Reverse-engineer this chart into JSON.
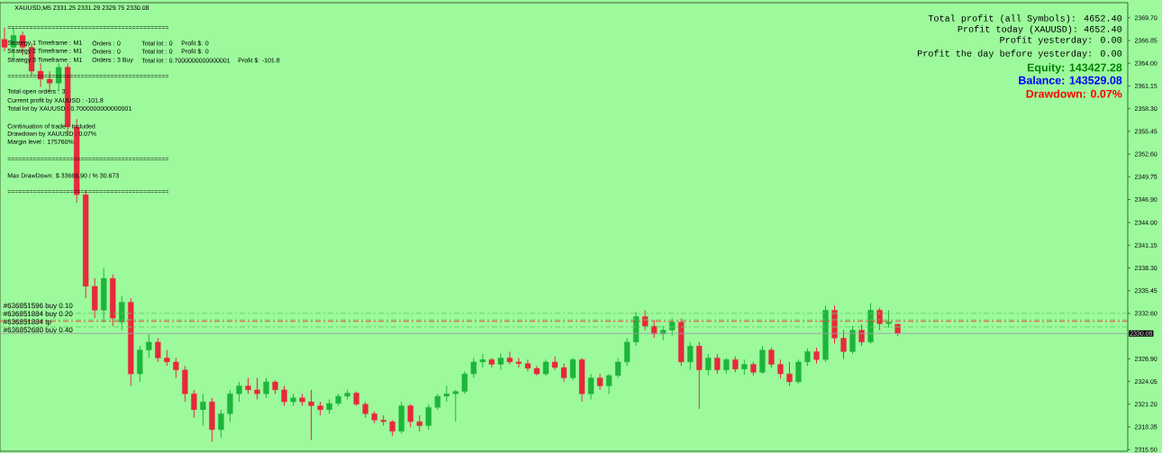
{
  "chart_data": {
    "type": "candlestick",
    "title": "XAUUSD,M5  2331.25 2331.29 2329.75 2330.08",
    "categories": [
      null,
      null,
      null,
      null,
      null,
      null,
      null,
      null,
      null,
      null,
      null,
      null,
      null,
      null,
      null,
      null,
      null,
      null,
      null,
      null,
      null,
      null,
      null,
      null,
      null,
      null,
      null,
      null,
      null,
      null,
      null,
      null,
      null,
      null,
      null,
      null,
      null,
      null,
      null,
      null,
      null,
      null,
      null,
      null,
      null,
      null,
      null,
      null,
      null,
      null,
      null,
      null,
      null,
      null,
      null,
      null,
      null,
      null,
      null,
      null,
      null,
      null,
      null,
      null,
      null,
      null,
      null,
      null,
      null,
      null,
      null,
      null,
      null,
      null,
      null,
      null,
      null,
      null,
      null,
      null,
      null,
      null,
      null,
      null,
      null,
      null,
      null,
      null,
      null,
      null,
      null,
      null,
      null,
      null,
      null,
      null,
      null,
      null,
      null,
      null,
      null,
      null,
      null,
      null,
      null,
      null,
      null,
      null,
      null,
      null,
      null,
      null,
      null,
      null,
      null,
      null,
      null,
      null,
      null,
      null,
      null,
      null,
      null,
      null,
      null
    ],
    "ohlc": [
      [
        2367.0,
        2368.5,
        2365.5,
        2366.0
      ],
      [
        2366.0,
        2368.4,
        2364.5,
        2367.5
      ],
      [
        2367.5,
        2368.0,
        2365.0,
        2366.0
      ],
      [
        2366.0,
        2366.5,
        2362.5,
        2363.0
      ],
      [
        2363.0,
        2364.0,
        2361.0,
        2362.0
      ],
      [
        2362.0,
        2363.0,
        2360.5,
        2361.5
      ],
      [
        2361.5,
        2364.0,
        2360.5,
        2363.5
      ],
      [
        2363.5,
        2364.0,
        2355.0,
        2356.0
      ],
      [
        2356.0,
        2357.0,
        2346.5,
        2347.5
      ],
      [
        2347.5,
        2348.0,
        2334.5,
        2336.0
      ],
      [
        2336.0,
        2337.0,
        2332.0,
        2333.0
      ],
      [
        2333.0,
        2338.3,
        2331.5,
        2337.0
      ],
      [
        2337.0,
        2337.5,
        2331.0,
        2332.0
      ],
      [
        2331.5,
        2334.8,
        2330.5,
        2334.0
      ],
      [
        2334.0,
        2334.5,
        2323.5,
        2325.0
      ],
      [
        2325.0,
        2328.5,
        2324.0,
        2328.0
      ],
      [
        2328.0,
        2330.0,
        2327.0,
        2329.0
      ],
      [
        2329.0,
        2329.5,
        2326.5,
        2327.0
      ],
      [
        2327.0,
        2328.0,
        2326.0,
        2326.5
      ],
      [
        2326.5,
        2327.0,
        2324.5,
        2325.5
      ],
      [
        2325.5,
        2326.0,
        2321.5,
        2322.5
      ],
      [
        2322.5,
        2323.0,
        2319.5,
        2320.5
      ],
      [
        2320.5,
        2322.5,
        2318.5,
        2321.5
      ],
      [
        2321.5,
        2322.0,
        2316.5,
        2318.0
      ],
      [
        2318.0,
        2320.5,
        2317.0,
        2320.0
      ],
      [
        2320.0,
        2323.0,
        2319.0,
        2322.5
      ],
      [
        2322.5,
        2324.0,
        2321.5,
        2323.5
      ],
      [
        2323.5,
        2324.5,
        2322.5,
        2323.0
      ],
      [
        2323.0,
        2324.5,
        2321.8,
        2322.5
      ],
      [
        2322.5,
        2324.5,
        2322.0,
        2324.0
      ],
      [
        2324.0,
        2324.2,
        2322.5,
        2323.0
      ],
      [
        2323.0,
        2323.5,
        2321.0,
        2321.5
      ],
      [
        2321.5,
        2322.5,
        2321.0,
        2322.0
      ],
      [
        2322.0,
        2322.5,
        2321.0,
        2321.5
      ],
      [
        2321.5,
        2323.0,
        2316.7,
        2321.0
      ],
      [
        2321.0,
        2321.5,
        2319.8,
        2320.5
      ],
      [
        2320.5,
        2321.8,
        2320.0,
        2321.3
      ],
      [
        2321.3,
        2322.5,
        2321.0,
        2322.2
      ],
      [
        2322.2,
        2323.0,
        2321.8,
        2322.6
      ],
      [
        2322.6,
        2322.8,
        2321.0,
        2321.2
      ],
      [
        2321.2,
        2321.5,
        2319.5,
        2320.0
      ],
      [
        2320.0,
        2320.3,
        2318.8,
        2319.2
      ],
      [
        2319.2,
        2319.8,
        2318.5,
        2319.0
      ],
      [
        2319.0,
        2319.2,
        2317.2,
        2317.8
      ],
      [
        2317.8,
        2321.5,
        2317.5,
        2321.0
      ],
      [
        2321.0,
        2321.2,
        2318.3,
        2319.0
      ],
      [
        2319.0,
        2319.8,
        2317.8,
        2318.5
      ],
      [
        2318.5,
        2321.2,
        2318.0,
        2320.8
      ],
      [
        2320.8,
        2322.5,
        2320.5,
        2322.2
      ],
      [
        2322.2,
        2323.5,
        2321.5,
        2322.5
      ],
      [
        2322.5,
        2323.0,
        2319.0,
        2322.8
      ],
      [
        2322.8,
        2325.3,
        2322.5,
        2325.0
      ],
      [
        2325.0,
        2327.0,
        2324.5,
        2326.5
      ],
      [
        2326.5,
        2327.5,
        2325.8,
        2326.8
      ],
      [
        2326.8,
        2327.0,
        2325.8,
        2326.2
      ],
      [
        2326.2,
        2327.6,
        2325.5,
        2327.0
      ],
      [
        2327.0,
        2327.8,
        2326.2,
        2326.5
      ],
      [
        2326.5,
        2327.0,
        2325.8,
        2326.3
      ],
      [
        2326.3,
        2326.8,
        2325.3,
        2325.7
      ],
      [
        2325.7,
        2326.0,
        2324.8,
        2325.0
      ],
      [
        2325.0,
        2326.8,
        2324.8,
        2326.5
      ],
      [
        2326.5,
        2327.2,
        2325.5,
        2325.8
      ],
      [
        2325.8,
        2326.3,
        2324.0,
        2324.5
      ],
      [
        2324.5,
        2327.0,
        2324.2,
        2326.8
      ],
      [
        2326.8,
        2327.0,
        2321.5,
        2322.5
      ],
      [
        2322.5,
        2325.0,
        2321.8,
        2324.5
      ],
      [
        2324.5,
        2325.0,
        2323.0,
        2323.5
      ],
      [
        2323.5,
        2325.0,
        2322.5,
        2324.8
      ],
      [
        2324.8,
        2327.0,
        2324.5,
        2326.5
      ],
      [
        2326.5,
        2329.5,
        2326.0,
        2329.0
      ],
      [
        2329.0,
        2332.8,
        2328.5,
        2332.2
      ],
      [
        2332.2,
        2333.0,
        2330.5,
        2331.0
      ],
      [
        2331.0,
        2331.8,
        2329.5,
        2330.0
      ],
      [
        2330.0,
        2331.0,
        2329.2,
        2330.5
      ],
      [
        2330.5,
        2332.0,
        2329.8,
        2331.5
      ],
      [
        2331.5,
        2332.0,
        2326.0,
        2326.5
      ],
      [
        2326.5,
        2329.0,
        2325.5,
        2328.5
      ],
      [
        2328.5,
        2329.0,
        2320.6,
        2325.5
      ],
      [
        2325.5,
        2327.5,
        2324.8,
        2327.0
      ],
      [
        2327.0,
        2327.5,
        2325.0,
        2325.5
      ],
      [
        2325.5,
        2327.0,
        2325.0,
        2326.8
      ],
      [
        2326.8,
        2327.2,
        2325.2,
        2325.6
      ],
      [
        2325.6,
        2326.8,
        2324.9,
        2326.2
      ],
      [
        2326.2,
        2326.5,
        2324.8,
        2325.2
      ],
      [
        2325.2,
        2328.5,
        2325.0,
        2328.0
      ],
      [
        2328.0,
        2328.3,
        2325.8,
        2326.2
      ],
      [
        2326.2,
        2326.8,
        2324.4,
        2325.0
      ],
      [
        2325.0,
        2326.5,
        2323.5,
        2324.0
      ],
      [
        2324.0,
        2326.8,
        2323.8,
        2326.5
      ],
      [
        2326.5,
        2328.2,
        2326.0,
        2327.8
      ],
      [
        2327.8,
        2328.3,
        2326.3,
        2326.8
      ],
      [
        2326.8,
        2333.6,
        2326.5,
        2333.0
      ],
      [
        2333.0,
        2333.6,
        2328.8,
        2329.5
      ],
      [
        2329.5,
        2330.5,
        2326.9,
        2327.8
      ],
      [
        2327.8,
        2331.0,
        2327.5,
        2330.5
      ],
      [
        2330.5,
        2331.2,
        2328.5,
        2329.0
      ],
      [
        2329.0,
        2333.9,
        2328.8,
        2333.0
      ],
      [
        2333.0,
        2333.3,
        2330.5,
        2331.3
      ],
      [
        2331.3,
        2333.0,
        2330.8,
        2331.5
      ],
      [
        2331.25,
        2331.29,
        2329.75,
        2330.08
      ],
      null,
      null,
      null,
      null,
      null,
      null,
      null,
      null,
      null,
      null,
      null,
      null,
      null,
      null,
      null,
      null,
      null,
      null,
      null,
      null,
      null,
      null,
      null,
      null,
      null
    ],
    "colors": [
      "#e8283c",
      "#1db53b",
      "#e8283c",
      "#e8283c",
      "#e8283c",
      "#e8283c",
      "#1db53b",
      "#e8283c",
      "#e8283c",
      "#e8283c",
      "#e8283c",
      "#1db53b",
      "#e8283c",
      "#1db53b",
      "#e8283c",
      "#1db53b",
      "#1db53b",
      "#e8283c",
      "#e8283c",
      "#e8283c",
      "#e8283c",
      "#e8283c",
      "#1db53b",
      "#e8283c",
      "#1db53b",
      "#1db53b",
      "#1db53b",
      "#e8283c",
      "#e8283c",
      "#1db53b",
      "#e8283c",
      "#e8283c",
      "#1db53b",
      "#e8283c",
      "#e8283c",
      "#e8283c",
      "#1db53b",
      "#1db53b",
      "#1db53b",
      "#e8283c",
      "#e8283c",
      "#e8283c",
      "#e8283c",
      "#e8283c",
      "#1db53b",
      "#e8283c",
      "#e8283c",
      "#1db53b",
      "#1db53b",
      "#1db53b",
      "#1db53b",
      "#1db53b",
      "#1db53b",
      "#1db53b",
      "#e8283c",
      "#1db53b",
      "#e8283c",
      "#e8283c",
      "#e8283c",
      "#e8283c",
      "#1db53b",
      "#e8283c",
      "#e8283c",
      "#1db53b",
      "#e8283c",
      "#1db53b",
      "#e8283c",
      "#1db53b",
      "#1db53b",
      "#1db53b",
      "#1db53b",
      "#e8283c",
      "#e8283c",
      "#1db53b",
      "#1db53b",
      "#e8283c",
      "#1db53b",
      "#e8283c",
      "#1db53b",
      "#e8283c",
      "#1db53b",
      "#e8283c",
      "#1db53b",
      "#e8283c",
      "#1db53b",
      "#e8283c",
      "#e8283c",
      "#e8283c",
      "#1db53b",
      "#1db53b",
      "#e8283c",
      "#1db53b",
      "#e8283c",
      "#e8283c",
      "#1db53b",
      "#e8283c",
      "#1db53b",
      "#e8283c",
      "#1db53b",
      "#e8283c",
      null,
      null,
      null,
      null,
      null,
      null,
      null,
      null,
      null,
      null,
      null,
      null,
      null,
      null,
      null,
      null,
      null,
      null,
      null,
      null,
      null,
      null,
      null,
      null,
      null
    ],
    "ylim": [
      2315.3,
      2371.6
    ],
    "yticks": [
      {
        "value": 2315.5,
        "label": "2315.50"
      },
      {
        "value": 2318.35,
        "label": "2318.35"
      },
      {
        "value": 2321.2,
        "label": "2321.20"
      },
      {
        "value": 2324.05,
        "label": "2324.05"
      },
      {
        "value": 2326.9,
        "label": "2326.90"
      },
      {
        "value": 2332.6,
        "label": "2332.60"
      },
      {
        "value": 2335.45,
        "label": "2335.45"
      },
      {
        "value": 2338.3,
        "label": "2338.30"
      },
      {
        "value": 2341.15,
        "label": "2341.15"
      },
      {
        "value": 2344.0,
        "label": "2344.00"
      },
      {
        "value": 2346.9,
        "label": "2346.90"
      },
      {
        "value": 2349.75,
        "label": "2349.75"
      },
      {
        "value": 2352.6,
        "label": "2352.60"
      },
      {
        "value": 2355.45,
        "label": "2355.45"
      },
      {
        "value": 2358.3,
        "label": "2358.30"
      },
      {
        "value": 2361.15,
        "label": "2361.15"
      },
      {
        "value": 2364.0,
        "label": "2364.00"
      },
      {
        "value": 2366.85,
        "label": "2366.85"
      },
      {
        "value": 2369.7,
        "label": "2369.70"
      }
    ],
    "tick_labels": "y",
    "ref_lines": [
      {
        "axis": "y",
        "value": 2332.6,
        "label": "#636851596 buy 0.10",
        "color": "#66cc66",
        "line_style": "dashdot"
      },
      {
        "axis": "y",
        "value": 2331.8,
        "label": "#636851884 buy 0.20",
        "color": "#66cc66",
        "line_style": "dashdot"
      },
      {
        "axis": "y",
        "value": 2331.6,
        "label": "#636851884 tp",
        "color": "#ff3030",
        "line_style": "dashdot"
      },
      {
        "axis": "y",
        "value": 2330.9,
        "label": "#636852680 buy 0.40",
        "color": "#66cc66",
        "line_style": "dashdot"
      },
      {
        "axis": "y",
        "value": 2330.08,
        "label": "2330.08",
        "color": "#a0a0a0",
        "line_style": "solid"
      }
    ],
    "annotations": [
      "============================================",
      "Strategy 1 Timeframe : M1",
      "Orders : 0",
      "Total lot : 0",
      "Profit $: 0",
      "Strategy 2 Timeframe : M1",
      "Orders : 0",
      "Total lot : 0",
      "Profit $: 0",
      "Strategy 3 Timeframe : M1",
      "Orders : 3 Buy",
      "Total lot : 0.7000000000000001",
      "Profit $: -101.8",
      "============================================",
      "Total open orders :   3",
      "Current profit by XAUUSD :   -101.8",
      "Total lot by XAUUSD :   0.7000000000000001",
      "Continuation of trade :   Included",
      "Drawdown by XAUUSD :   0.07%",
      "Margin level :   175760%",
      "============================================",
      "Max DrawDown: $ 33666.90 / % 30.673",
      "============================================",
      "Total profit (all Symbols): 4652.40",
      "Profit today (XAUUSD): 4652.40",
      "Profit yesterday: 0.00",
      "Profit the day before yesterday: 0.00",
      "Equity: 143427.28",
      "Balance: 143529.08",
      "Drawdown: 0.07%"
    ]
  }
}
